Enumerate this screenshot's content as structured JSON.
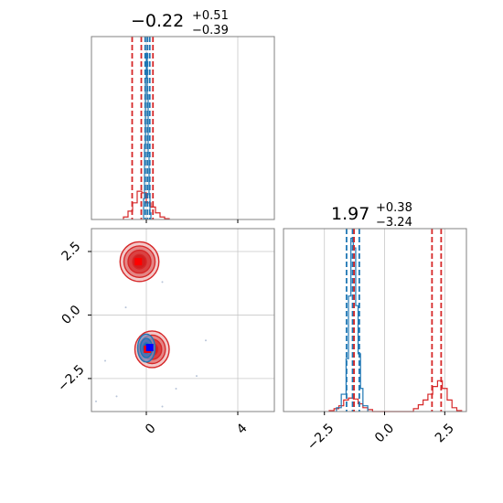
{
  "chart_data": {
    "type": "corner",
    "colors": {
      "red": "#d62728",
      "blue": "#1f77b4",
      "red_marker": "#ff0000",
      "blue_marker": "#0000ff"
    },
    "param1": {
      "title_value": "−0.22",
      "title_plus": "+0.51",
      "title_minus": "−0.39",
      "xlim": [
        -2.4,
        5.6
      ],
      "ticks": [
        0,
        4
      ],
      "tick_labels": [
        "0",
        "4"
      ],
      "red_quantiles": [
        -0.62,
        -0.22,
        0.29
      ],
      "blue_quantiles": [
        -0.05,
        0.05,
        0.15
      ],
      "hist_red": {
        "edges": [
          -1.0,
          -0.8,
          -0.6,
          -0.4,
          -0.2,
          0.0,
          0.2,
          0.4,
          0.6,
          0.8,
          1.0
        ],
        "counts": [
          3,
          10,
          20,
          34,
          32,
          20,
          15,
          8,
          3,
          1
        ]
      },
      "hist_blue": {
        "edges": [
          -0.12,
          -0.08,
          -0.04,
          0.0,
          0.04,
          0.08,
          0.12,
          0.16,
          0.2
        ],
        "counts": [
          25,
          90,
          170,
          200,
          150,
          80,
          30,
          8
        ]
      },
      "hist_ymax": 220
    },
    "param2": {
      "title_value": "1.97",
      "title_plus": "+0.38",
      "title_minus": "−3.24",
      "xlim": [
        -4.2,
        3.4
      ],
      "ticks": [
        -2.5,
        0.0,
        2.5
      ],
      "tick_labels": [
        "−2.5",
        "0.0",
        "2.5"
      ],
      "red_quantiles": [
        -1.27,
        1.97,
        2.35
      ],
      "blue_quantiles": [
        -1.58,
        -1.33,
        -1.05
      ],
      "hist_red": {
        "edges": [
          -2.3,
          -2.1,
          -1.9,
          -1.7,
          -1.5,
          -1.3,
          -1.1,
          -0.9,
          -0.7,
          -0.5,
          1.2,
          1.4,
          1.6,
          1.8,
          2.0,
          2.2,
          2.4,
          2.6,
          2.8,
          3.0,
          3.2
        ],
        "counts": [
          1,
          3,
          6,
          12,
          14,
          13,
          8,
          4,
          2,
          0,
          3,
          7,
          12,
          18,
          26,
          32,
          24,
          12,
          4,
          1
        ]
      },
      "hist_blue": {
        "edges": [
          -2.0,
          -1.8,
          -1.6,
          -1.5,
          -1.4,
          -1.3,
          -1.2,
          -1.1,
          -1.0,
          -0.9,
          -0.7
        ],
        "counts": [
          4,
          18,
          55,
          120,
          180,
          170,
          110,
          60,
          24,
          6
        ]
      },
      "hist_ymax": 190
    },
    "joint": {
      "xlim": [
        -2.4,
        5.6
      ],
      "ylim": [
        -3.8,
        3.4
      ],
      "y_ticks": [
        -2.5,
        0.0,
        2.5
      ],
      "y_tick_labels": [
        "−2.5",
        "0.0",
        "2.5"
      ],
      "red_clusters": [
        {
          "x": -0.3,
          "y": 2.1,
          "radii_x": [
            0.85,
            0.68,
            0.5,
            0.3
          ],
          "radii_y": [
            0.78,
            0.62,
            0.45,
            0.28
          ]
        },
        {
          "x": 0.25,
          "y": -1.35,
          "radii_x": [
            0.75,
            0.58,
            0.42,
            0.25
          ],
          "radii_y": [
            0.72,
            0.56,
            0.4,
            0.24
          ]
        }
      ],
      "blue_cluster": {
        "x": 0.0,
        "y": -1.3,
        "radii_x": [
          0.38,
          0.26,
          0.14
        ],
        "radii_y": [
          0.55,
          0.38,
          0.2
        ]
      },
      "red_markers": [
        {
          "x": -0.35,
          "y": 2.1
        },
        {
          "x": 0.05,
          "y": -1.35
        }
      ],
      "blue_marker": {
        "x": 0.15,
        "y": -1.28
      },
      "scatter_points": [
        {
          "x": -2.2,
          "y": -3.4
        },
        {
          "x": -1.3,
          "y": -3.2
        },
        {
          "x": 2.6,
          "y": -1.0
        },
        {
          "x": 0.7,
          "y": 1.3
        },
        {
          "x": -1.8,
          "y": -1.8
        },
        {
          "x": 1.3,
          "y": -2.9
        },
        {
          "x": 0.7,
          "y": -3.6
        },
        {
          "x": -0.9,
          "y": 0.3
        },
        {
          "x": 2.2,
          "y": -2.4
        }
      ]
    }
  }
}
